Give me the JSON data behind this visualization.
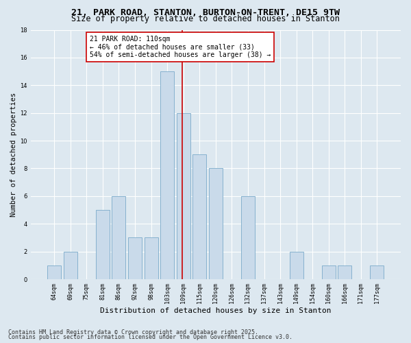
{
  "title_line1": "21, PARK ROAD, STANTON, BURTON-ON-TRENT, DE15 9TW",
  "title_line2": "Size of property relative to detached houses in Stanton",
  "xlabel": "Distribution of detached houses by size in Stanton",
  "ylabel": "Number of detached properties",
  "categories": [
    "64sqm",
    "69sqm",
    "75sqm",
    "81sqm",
    "86sqm",
    "92sqm",
    "98sqm",
    "103sqm",
    "109sqm",
    "115sqm",
    "120sqm",
    "126sqm",
    "132sqm",
    "137sqm",
    "143sqm",
    "149sqm",
    "154sqm",
    "160sqm",
    "166sqm",
    "171sqm",
    "177sqm"
  ],
  "values": [
    1,
    2,
    0,
    5,
    6,
    3,
    3,
    15,
    12,
    9,
    8,
    0,
    6,
    0,
    0,
    2,
    0,
    1,
    1,
    0,
    1
  ],
  "bar_color": "#c9daea",
  "bar_edge_color": "#7aaaca",
  "vline_index": 8,
  "vline_color": "#cc0000",
  "annotation_text": "21 PARK ROAD: 110sqm\n← 46% of detached houses are smaller (33)\n54% of semi-detached houses are larger (38) →",
  "annotation_box_facecolor": "#ffffff",
  "annotation_box_edgecolor": "#cc0000",
  "ylim": [
    0,
    18
  ],
  "yticks": [
    0,
    2,
    4,
    6,
    8,
    10,
    12,
    14,
    16,
    18
  ],
  "background_color": "#dde8f0",
  "plot_bg_color": "#dde8f0",
  "footer_line1": "Contains HM Land Registry data © Crown copyright and database right 2025.",
  "footer_line2": "Contains public sector information licensed under the Open Government Licence v3.0.",
  "grid_color": "#ffffff",
  "title_fontsize": 9.5,
  "subtitle_fontsize": 8.5,
  "ylabel_fontsize": 7.5,
  "xlabel_fontsize": 8,
  "tick_fontsize": 6,
  "annotation_fontsize": 7,
  "footer_fontsize": 6
}
